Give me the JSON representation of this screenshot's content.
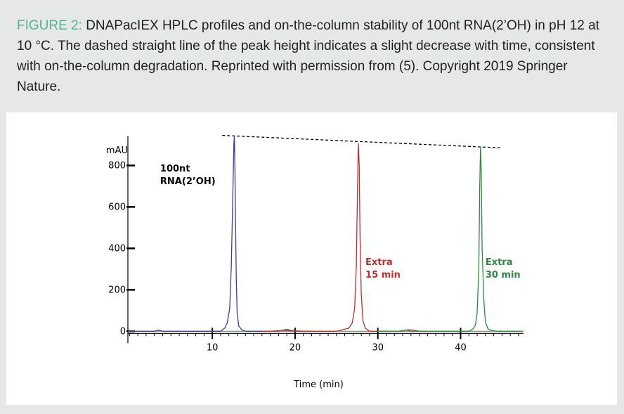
{
  "caption": {
    "label": "FIGURE 2:",
    "text": "DNAPacIEX HPLC profiles and on-the-column stability of 100nt RNA(2’OH) in pH 12 at 10 °C. The dashed straight line of the peak height indicates a slight decrease with time, consistent with on-the-column degradation. Reprinted with permission from (5). Copyright 2019 Springer Nature."
  },
  "colors": {
    "caption_label": "#4fb58a",
    "trace_initial": "#3c3f96",
    "trace_15": "#cc2a27",
    "trace_30": "#2b8a3e",
    "annotation_15": "#cc2a27",
    "annotation_30": "#2b8a3e"
  },
  "chart_data": {
    "type": "line",
    "title": "",
    "xlabel": "Time (min)",
    "ylabel": "mAU",
    "xlim": [
      -0.2,
      47.6
    ],
    "ylim": [
      -60,
      920
    ],
    "x_ticks": [
      10,
      20,
      30,
      40
    ],
    "y_ticks": [
      0,
      200,
      400,
      600,
      800
    ],
    "grid": false,
    "legend": "none",
    "annotations": [
      {
        "lines": [
          "100nt",
          "RNA(2’OH)"
        ],
        "color": "#000000",
        "x": 3.7,
        "y": 770
      },
      {
        "lines": [
          "Extra",
          "15 min"
        ],
        "color": "#cc2a27",
        "x": 28.5,
        "y": 320
      },
      {
        "lines": [
          "Extra",
          "30 min"
        ],
        "color": "#2b8a3e",
        "x": 43.0,
        "y": 320
      }
    ],
    "trend_line": {
      "style": "dashed",
      "points": [
        [
          11.2,
          945
        ],
        [
          44.8,
          885
        ]
      ]
    },
    "series": [
      {
        "color": "#3c3f96",
        "x": [
          0,
          3.0,
          3.5,
          4.0,
          10.0,
          11.0,
          11.5,
          11.8,
          12.1,
          12.3,
          12.5,
          12.6,
          12.65,
          12.7,
          12.8,
          12.9,
          13.0,
          13.2,
          13.6,
          14.0,
          17.0,
          18.5,
          19.0,
          19.5,
          20.0,
          21.0,
          22.0
        ],
        "y": [
          0,
          0,
          6,
          0,
          0,
          0,
          15,
          40,
          110,
          320,
          700,
          900,
          940,
          900,
          560,
          240,
          90,
          25,
          6,
          0,
          0,
          4,
          10,
          4,
          2,
          0,
          0
        ]
      },
      {
        "color": "#cc2a27",
        "x": [
          16.0,
          18.0,
          18.5,
          19.0,
          20.0,
          25.0,
          26.5,
          26.9,
          27.2,
          27.4,
          27.55,
          27.65,
          27.75,
          27.85,
          28.0,
          28.2,
          28.5,
          29.0,
          30.0,
          33.0,
          33.5,
          34.2,
          35.0,
          36.0
        ],
        "y": [
          0,
          0,
          5,
          3,
          0,
          0,
          15,
          40,
          110,
          320,
          700,
          905,
          800,
          450,
          180,
          50,
          15,
          0,
          0,
          0,
          7,
          6,
          0,
          0
        ]
      },
      {
        "color": "#2b8a3e",
        "x": [
          30.0,
          32.5,
          33.5,
          34.0,
          38.0,
          41.0,
          41.5,
          41.8,
          42.0,
          42.2,
          42.3,
          42.4,
          42.5,
          42.6,
          42.8,
          43.0,
          43.3,
          43.8,
          44.5,
          47.5
        ],
        "y": [
          0,
          0,
          6,
          0,
          0,
          0,
          12,
          30,
          90,
          300,
          680,
          890,
          760,
          400,
          150,
          45,
          12,
          3,
          0,
          0
        ]
      }
    ]
  }
}
